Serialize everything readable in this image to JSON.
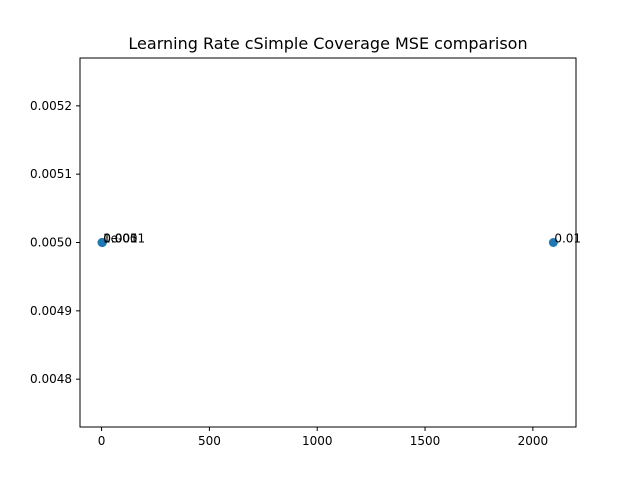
{
  "chart_data": {
    "type": "scatter",
    "title": "Learning Rate cSimple Coverage MSE comparison",
    "xlabel": "",
    "ylabel": "",
    "xlim": [
      -100,
      2200
    ],
    "ylim": [
      0.00473,
      0.00527
    ],
    "xticks": [
      0,
      500,
      1000,
      1500,
      2000
    ],
    "xtick_labels": [
      "0",
      "500",
      "1000",
      "1500",
      "2000"
    ],
    "yticks": [
      0.0048,
      0.0049,
      0.005,
      0.0051,
      0.0052
    ],
    "ytick_labels": [
      "0.0048",
      "0.0049",
      "0.0050",
      "0.0051",
      "0.0052"
    ],
    "grid": false,
    "marker_color": "#1f77b4",
    "points": [
      {
        "x": 2,
        "y": 0.005,
        "label": "1e-05"
      },
      {
        "x": 3,
        "y": 0.005,
        "label": "0.0001"
      },
      {
        "x": 4,
        "y": 0.005,
        "label": "0.001"
      },
      {
        "x": 2095,
        "y": 0.005,
        "label": "0.01"
      }
    ]
  }
}
